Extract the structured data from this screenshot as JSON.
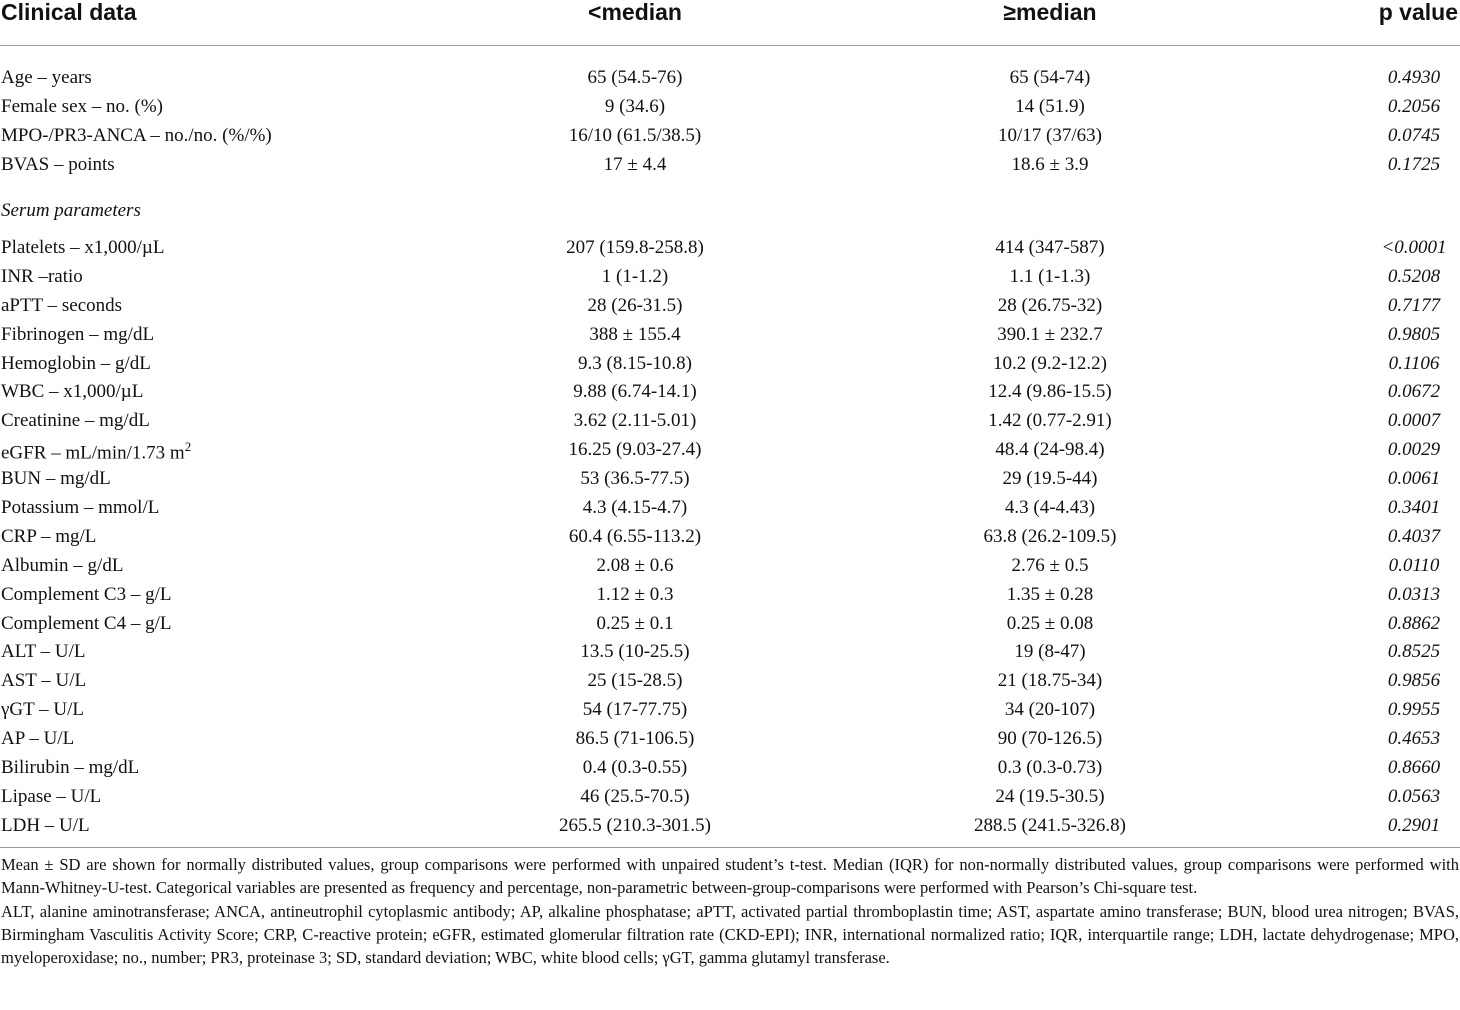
{
  "table": {
    "headers": [
      "Clinical data",
      "<median",
      "≥median",
      "p value"
    ],
    "rows": [
      {
        "label": "Age – years",
        "a": "65 (54.5-76)",
        "b": "65 (54-74)",
        "p": "0.4930"
      },
      {
        "label": "Female sex – no. (%)",
        "a": "9 (34.6)",
        "b": "14 (51.9)",
        "p": "0.2056"
      },
      {
        "label": "MPO-/PR3-ANCA – no./no. (%/%)",
        "a": "16/10 (61.5/38.5)",
        "b": "10/17 (37/63)",
        "p": "0.0745"
      },
      {
        "label": "BVAS – points",
        "a": "17 ± 4.4",
        "b": "18.6 ± 3.9",
        "p": "0.1725"
      }
    ],
    "section_label": "Serum parameters",
    "serum_rows": [
      {
        "label": "Platelets – x1,000/µL",
        "a": "207 (159.8-258.8)",
        "b": "414 (347-587)",
        "p": "<0.0001"
      },
      {
        "label": "INR –ratio",
        "a": "1 (1-1.2)",
        "b": "1.1 (1-1.3)",
        "p": "0.5208"
      },
      {
        "label": "aPTT – seconds",
        "a": "28 (26-31.5)",
        "b": "28 (26.75-32)",
        "p": "0.7177"
      },
      {
        "label": "Fibrinogen – mg/dL",
        "a": "388 ± 155.4",
        "b": "390.1 ± 232.7",
        "p": "0.9805"
      },
      {
        "label": "Hemoglobin – g/dL",
        "a": "9.3 (8.15-10.8)",
        "b": "10.2 (9.2-12.2)",
        "p": "0.1106"
      },
      {
        "label": "WBC – x1,000/µL",
        "a": "9.88 (6.74-14.1)",
        "b": "12.4 (9.86-15.5)",
        "p": "0.0672"
      },
      {
        "label": "Creatinine – mg/dL",
        "a": "3.62 (2.11-5.01)",
        "b": "1.42 (0.77-2.91)",
        "p": "0.0007"
      },
      {
        "label": "eGFR – mL/min/1.73 m",
        "label_sup": "2",
        "a": "16.25 (9.03-27.4)",
        "b": "48.4 (24-98.4)",
        "p": "0.0029"
      },
      {
        "label": "BUN – mg/dL",
        "a": "53 (36.5-77.5)",
        "b": "29 (19.5-44)",
        "p": "0.0061"
      },
      {
        "label": "Potassium – mmol/L",
        "a": "4.3 (4.15-4.7)",
        "b": "4.3 (4-4.43)",
        "p": "0.3401"
      },
      {
        "label": "CRP – mg/L",
        "a": "60.4 (6.55-113.2)",
        "b": "63.8 (26.2-109.5)",
        "p": "0.4037"
      },
      {
        "label": "Albumin – g/dL",
        "a": "2.08 ± 0.6",
        "b": "2.76 ± 0.5",
        "p": "0.0110"
      },
      {
        "label": "Complement C3 – g/L",
        "a": "1.12 ± 0.3",
        "b": "1.35 ± 0.28",
        "p": "0.0313"
      },
      {
        "label": "Complement C4 – g/L",
        "a": "0.25 ± 0.1",
        "b": "0.25 ± 0.08",
        "p": "0.8862"
      },
      {
        "label": "ALT – U/L",
        "a": "13.5 (10-25.5)",
        "b": "19 (8-47)",
        "p": "0.8525"
      },
      {
        "label": "AST – U/L",
        "a": "25 (15-28.5)",
        "b": "21 (18.75-34)",
        "p": "0.9856"
      },
      {
        "label": "γGT – U/L",
        "a": "54 (17-77.75)",
        "b": "34 (20-107)",
        "p": "0.9955"
      },
      {
        "label": "AP – U/L",
        "a": "86.5 (71-106.5)",
        "b": "90 (70-126.5)",
        "p": "0.4653"
      },
      {
        "label": "Bilirubin – mg/dL",
        "a": "0.4 (0.3-0.55)",
        "b": "0.3 (0.3-0.73)",
        "p": "0.8660"
      },
      {
        "label": "Lipase – U/L",
        "a": "46 (25.5-70.5)",
        "b": "24 (19.5-30.5)",
        "p": "0.0563"
      },
      {
        "label": "LDH – U/L",
        "a": "265.5 (210.3-301.5)",
        "b": "288.5 (241.5-326.8)",
        "p": "0.2901"
      }
    ]
  },
  "footnotes": {
    "stats": "Mean ± SD are shown for normally distributed values, group comparisons were performed with unpaired student’s t-test. Median (IQR) for non-normally distributed values, group comparisons were performed with Mann-Whitney-U-test. Categorical variables are presented as frequency and percentage, non-parametric between-group-comparisons were performed with Pearson’s Chi-square test.",
    "abbreviations": "ALT, alanine aminotransferase; ANCA, antineutrophil cytoplasmic antibody; AP, alkaline phosphatase; aPTT, activated partial thromboplastin time; AST, aspartate amino transferase; BUN, blood urea nitrogen; BVAS, Birmingham Vasculitis Activity Score; CRP, C-reactive protein; eGFR, estimated glomerular filtration rate (CKD-EPI); INR, international normalized ratio; IQR, interquartile range; LDH, lactate dehydrogenase; MPO, myeloperoxidase; no., number; PR3, proteinase 3; SD, standard deviation; WBC, white blood cells; γGT, gamma glutamyl transferase."
  }
}
